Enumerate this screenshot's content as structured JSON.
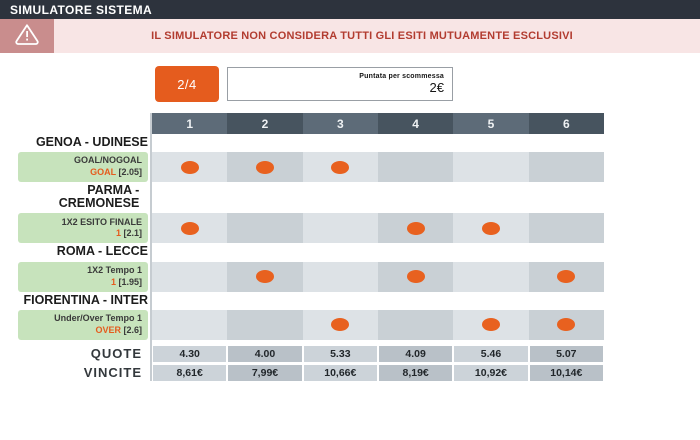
{
  "title_bar": {
    "title": "SIMULATORE SISTEMA"
  },
  "warning": {
    "icon": "warning-triangle-icon",
    "text": "IL SIMULATORE NON CONSIDERA TUTTI GLI ESITI MUTUAMENTE ESCLUSIVI"
  },
  "controls": {
    "combination_badge": "2/4",
    "stake_label": "Puntata per scommessa",
    "stake_value": "2€"
  },
  "table": {
    "column_headers": [
      "1",
      "2",
      "3",
      "4",
      "5",
      "6"
    ],
    "matches": [
      {
        "name": "GENOA - UDINESE",
        "market": "GOAL/NOGOAL",
        "selection": "GOAL",
        "odds": " [2.05]",
        "columns": [
          1,
          2,
          3
        ]
      },
      {
        "name": "PARMA - CREMONESE",
        "market": "1X2 ESITO FINALE",
        "selection": "1",
        "odds": " [2.1]",
        "columns": [
          1,
          4,
          5
        ]
      },
      {
        "name": "ROMA - LECCE",
        "market": "1X2 Tempo 1",
        "selection": "1",
        "odds": " [1.95]",
        "columns": [
          2,
          4,
          6
        ]
      },
      {
        "name": "FIORENTINA - INTER",
        "market": "Under/Over Tempo 1",
        "selection": "OVER",
        "odds": " [2.6]",
        "columns": [
          3,
          5,
          6
        ]
      }
    ],
    "quote_label": "QUOTE",
    "quote_values": [
      "4.30",
      "4.00",
      "5.33",
      "4.09",
      "5.46",
      "5.07"
    ],
    "vincite_label": "VINCITE",
    "vincite_values": [
      "8,61€",
      "7,99€",
      "10,66€",
      "8,19€",
      "10,92€",
      "10,14€"
    ]
  },
  "colors": {
    "accent_orange": "#e55c1e",
    "chip_green": "#c7e3bc",
    "warning_red": "#b23c30",
    "warning_bg": "#f8e5e5",
    "titlebar_bg": "#2d333d"
  }
}
